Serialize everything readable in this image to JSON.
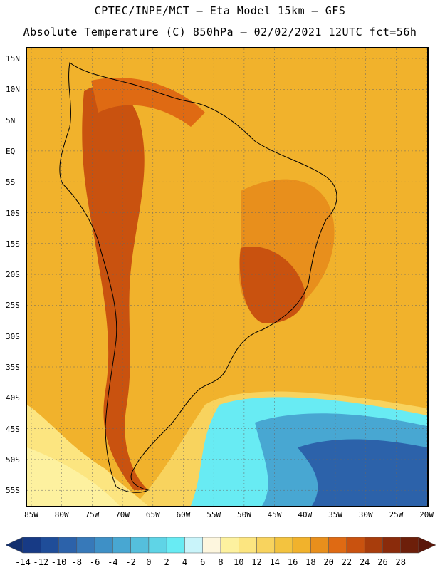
{
  "header": {
    "line1": "CPTEC/INPE/MCT –  Eta Model 15km – GFS",
    "line2": "Absolute Temperature (C) 850hPa – 02/02/2021 12UTC fct=56h"
  },
  "map": {
    "lat_labels": [
      "15N",
      "10N",
      "5N",
      "EQ",
      "5S",
      "10S",
      "15S",
      "20S",
      "25S",
      "30S",
      "35S",
      "40S",
      "45S",
      "50S",
      "55S"
    ],
    "lon_labels": [
      "85W",
      "80W",
      "75W",
      "70W",
      "65W",
      "60W",
      "55W",
      "50W",
      "45W",
      "40W",
      "35W",
      "30W",
      "25W",
      "20W"
    ],
    "background_color": "#f1b22c"
  },
  "colorbar": {
    "ticks": [
      "-14",
      "-12",
      "-10",
      "-8",
      "-6",
      "-4",
      "-2",
      "0",
      "2",
      "4",
      "6",
      "8",
      "10",
      "12",
      "14",
      "16",
      "18",
      "20",
      "22",
      "24",
      "26",
      "28"
    ],
    "colors": [
      "#173a85",
      "#1f4d99",
      "#2c62aa",
      "#3779b9",
      "#3e90c6",
      "#48a7d2",
      "#55bfdc",
      "#5fd4e6",
      "#68ebf3",
      "#c9f4fa",
      "#fdf6de",
      "#fdf19f",
      "#fce580",
      "#f8d35e",
      "#f3c33f",
      "#f1b22c",
      "#e88f1c",
      "#df6a13",
      "#c9520f",
      "#a83d0c",
      "#8a2b0b",
      "#6d1f0a"
    ],
    "left_end_color": "#13306f",
    "right_end_color": "#5a170a"
  }
}
